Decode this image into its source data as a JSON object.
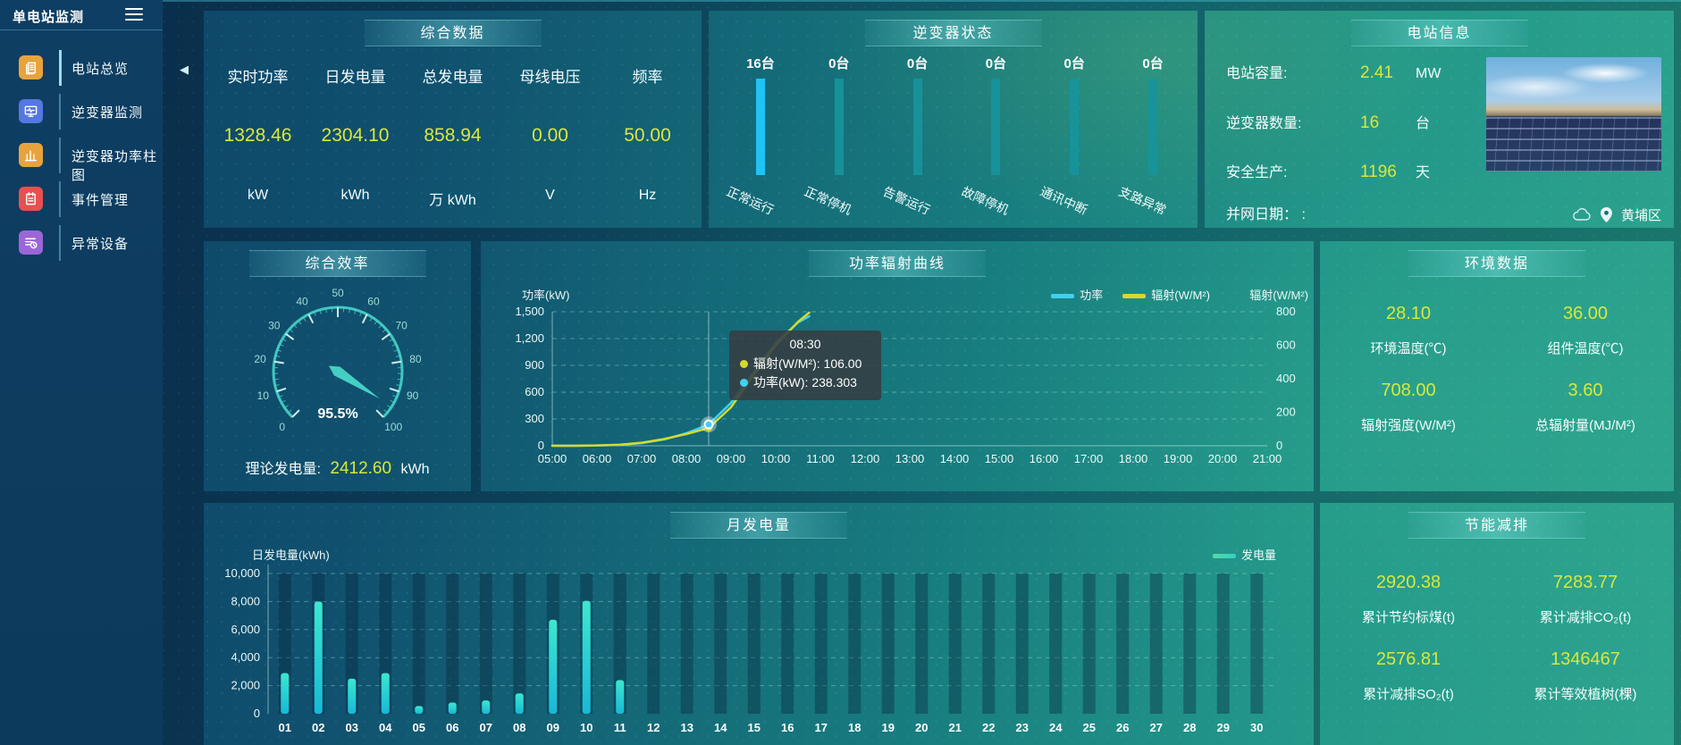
{
  "colors": {
    "value_yellow": "#d9e839",
    "active_cyan": "#1fc3f5",
    "idle_teal": "#17949c",
    "gauge_teal": "#45cfc4",
    "power_line": "#41d0f2",
    "radiation_line": "#d4da2e",
    "sidebar_icon_colors": [
      "#e8a33d",
      "#5577e0",
      "#e8a33d",
      "#e85050",
      "#9b66d8"
    ]
  },
  "sidebar": {
    "title": "单电站监测",
    "items": [
      {
        "label": "电站总览",
        "icon": "overview-icon",
        "color": "#e8a33d",
        "active": true
      },
      {
        "label": "逆变器监测",
        "icon": "inverter-monitor-icon",
        "color": "#5577e0",
        "active": false
      },
      {
        "label": "逆变器功率柱图",
        "icon": "inverter-power-bars-icon",
        "color": "#e8a33d",
        "active": false
      },
      {
        "label": "事件管理",
        "icon": "event-management-icon",
        "color": "#e85050",
        "active": false
      },
      {
        "label": "异常设备",
        "icon": "abnormal-devices-icon",
        "color": "#9b66d8",
        "active": false
      }
    ]
  },
  "overview": {
    "title": "综合数据",
    "metrics": [
      {
        "label": "实时功率",
        "value": "1328.46",
        "unit": "kW"
      },
      {
        "label": "日发电量",
        "value": "2304.10",
        "unit": "kWh"
      },
      {
        "label": "总发电量",
        "value": "858.94",
        "unit": "万 kWh"
      },
      {
        "label": "母线电压",
        "value": "0.00",
        "unit": "V"
      },
      {
        "label": "频率",
        "value": "50.00",
        "unit": "Hz"
      }
    ]
  },
  "inverter_status": {
    "title": "逆变器状态",
    "unit_suffix": "台",
    "items": [
      {
        "label": "正常运行",
        "count": 16,
        "active": true
      },
      {
        "label": "正常停机",
        "count": 0,
        "active": false
      },
      {
        "label": "告警运行",
        "count": 0,
        "active": false
      },
      {
        "label": "故障停机",
        "count": 0,
        "active": false
      },
      {
        "label": "通讯中断",
        "count": 0,
        "active": false
      },
      {
        "label": "支路异常",
        "count": 0,
        "active": false
      }
    ]
  },
  "station_info": {
    "title": "电站信息",
    "rows": [
      {
        "label": "电站容量:",
        "value": "2.41",
        "unit": "MW"
      },
      {
        "label": "逆变器数量:",
        "value": "16",
        "unit": "台"
      },
      {
        "label": "安全生产:",
        "value": "1196",
        "unit": "天"
      },
      {
        "label": "并网日期：  :",
        "value": "",
        "unit": ""
      }
    ],
    "location": "黄埔区"
  },
  "efficiency": {
    "title": "综合效率",
    "gauge_display": "95.5%",
    "theoretical_label": "理论发电量:",
    "theoretical_value": "2412.60",
    "theoretical_unit": "kWh"
  },
  "power_radiation": {
    "title": "功率辐射曲线",
    "ylabel_left": "功率(kW)",
    "ylabel_right": "辐射(W/M²)",
    "legend": [
      {
        "label": "功率",
        "color": "#41d0f2"
      },
      {
        "label": "辐射(W/M²)",
        "color": "#d4da2e"
      }
    ],
    "tooltip": {
      "time": "08:30",
      "rows": [
        {
          "color": "#d4da2e",
          "text": "辐射(W/M²): 106.00"
        },
        {
          "color": "#41d0f2",
          "text": "功率(kW): 238.303"
        }
      ]
    }
  },
  "environment": {
    "title": "环境数据",
    "cells": [
      {
        "value": "28.10",
        "label": "环境温度(℃)"
      },
      {
        "value": "36.00",
        "label": "组件温度(℃)"
      },
      {
        "value": "708.00",
        "label": "辐射强度(W/M²)"
      },
      {
        "value": "3.60",
        "label": "总辐射量(MJ/M²)"
      }
    ]
  },
  "monthly": {
    "title": "月发电量",
    "ylabel": "日发电量(kWh)",
    "legend": "发电量"
  },
  "savings": {
    "title": "节能减排",
    "cells": [
      {
        "value": "2920.38",
        "label": "累计节约标煤(t)"
      },
      {
        "value": "7283.77",
        "label": "累计减排CO₂(t)"
      },
      {
        "value": "2576.81",
        "label": "累计减排SO₂(t)"
      },
      {
        "value": "1346467",
        "label": "累计等效植树(棵)"
      }
    ]
  },
  "chart_data": [
    {
      "id": "inverter_status",
      "type": "bar",
      "title": "逆变器状态",
      "categories": [
        "正常运行",
        "正常停机",
        "告警运行",
        "故障停机",
        "通讯中断",
        "支路异常"
      ],
      "values": [
        16,
        0,
        0,
        0,
        0,
        0
      ],
      "unit": "台",
      "note": "bars drawn equal height; bright cyan = active state, teal = zero"
    },
    {
      "id": "efficiency_gauge",
      "type": "gauge",
      "title": "综合效率",
      "min": 0,
      "max": 100,
      "value": 95.5,
      "tick_labels": [
        0,
        10,
        20,
        30,
        40,
        50,
        60,
        70,
        80,
        90,
        100
      ]
    },
    {
      "id": "power_radiation",
      "type": "line",
      "title": "功率辐射曲线",
      "axis_hours": [
        "05:00",
        "06:00",
        "07:00",
        "08:00",
        "09:00",
        "10:00",
        "11:00",
        "12:00",
        "13:00",
        "14:00",
        "15:00",
        "16:00",
        "17:00",
        "18:00",
        "19:00",
        "20:00",
        "21:00"
      ],
      "x_range_hours": [
        5,
        21
      ],
      "x_hours": [
        5,
        5.5,
        6,
        6.5,
        7,
        7.5,
        8,
        8.5,
        9,
        9.5,
        10,
        10.5,
        10.75
      ],
      "series": [
        {
          "name": "功率",
          "axis": "left",
          "unit": "kW",
          "color": "#41d0f2",
          "values": [
            0,
            0,
            3,
            10,
            30,
            70,
            140,
            238.303,
            480,
            820,
            1150,
            1380,
            1450
          ]
        },
        {
          "name": "辐射(W/M²)",
          "axis": "right",
          "unit": "W/M²",
          "color": "#d4da2e",
          "values": [
            0,
            0,
            2,
            6,
            18,
            40,
            70,
            106,
            230,
            420,
            600,
            740,
            795
          ]
        }
      ],
      "ylim_left": [
        0,
        1500
      ],
      "left_ticks": [
        0,
        300,
        600,
        900,
        1200,
        1500
      ],
      "ylim_right": [
        0,
        800
      ],
      "right_ticks": [
        0,
        200,
        400,
        600,
        800
      ],
      "highlight": {
        "x_hour": 8.5,
        "time": "08:30",
        "power": 238.303,
        "radiation": 106.0
      },
      "legend_position": "top-right",
      "grid": true
    },
    {
      "id": "monthly_generation",
      "type": "bar",
      "title": "月发电量",
      "ylabel": "日发电量(kWh)",
      "ylim": [
        0,
        10000
      ],
      "y_ticks": [
        0,
        2000,
        4000,
        6000,
        8000,
        10000
      ],
      "legend": "发电量",
      "categories": [
        "01",
        "02",
        "03",
        "04",
        "05",
        "06",
        "07",
        "08",
        "09",
        "10",
        "11",
        "12",
        "13",
        "14",
        "15",
        "16",
        "17",
        "18",
        "19",
        "20",
        "21",
        "22",
        "23",
        "24",
        "25",
        "26",
        "27",
        "28",
        "29",
        "30"
      ],
      "values": [
        2900,
        8000,
        2500,
        2900,
        550,
        800,
        950,
        1450,
        6700,
        8050,
        2400,
        0,
        0,
        0,
        0,
        0,
        0,
        0,
        0,
        0,
        0,
        0,
        0,
        0,
        0,
        0,
        0,
        0,
        0,
        0
      ],
      "grid": true
    }
  ]
}
